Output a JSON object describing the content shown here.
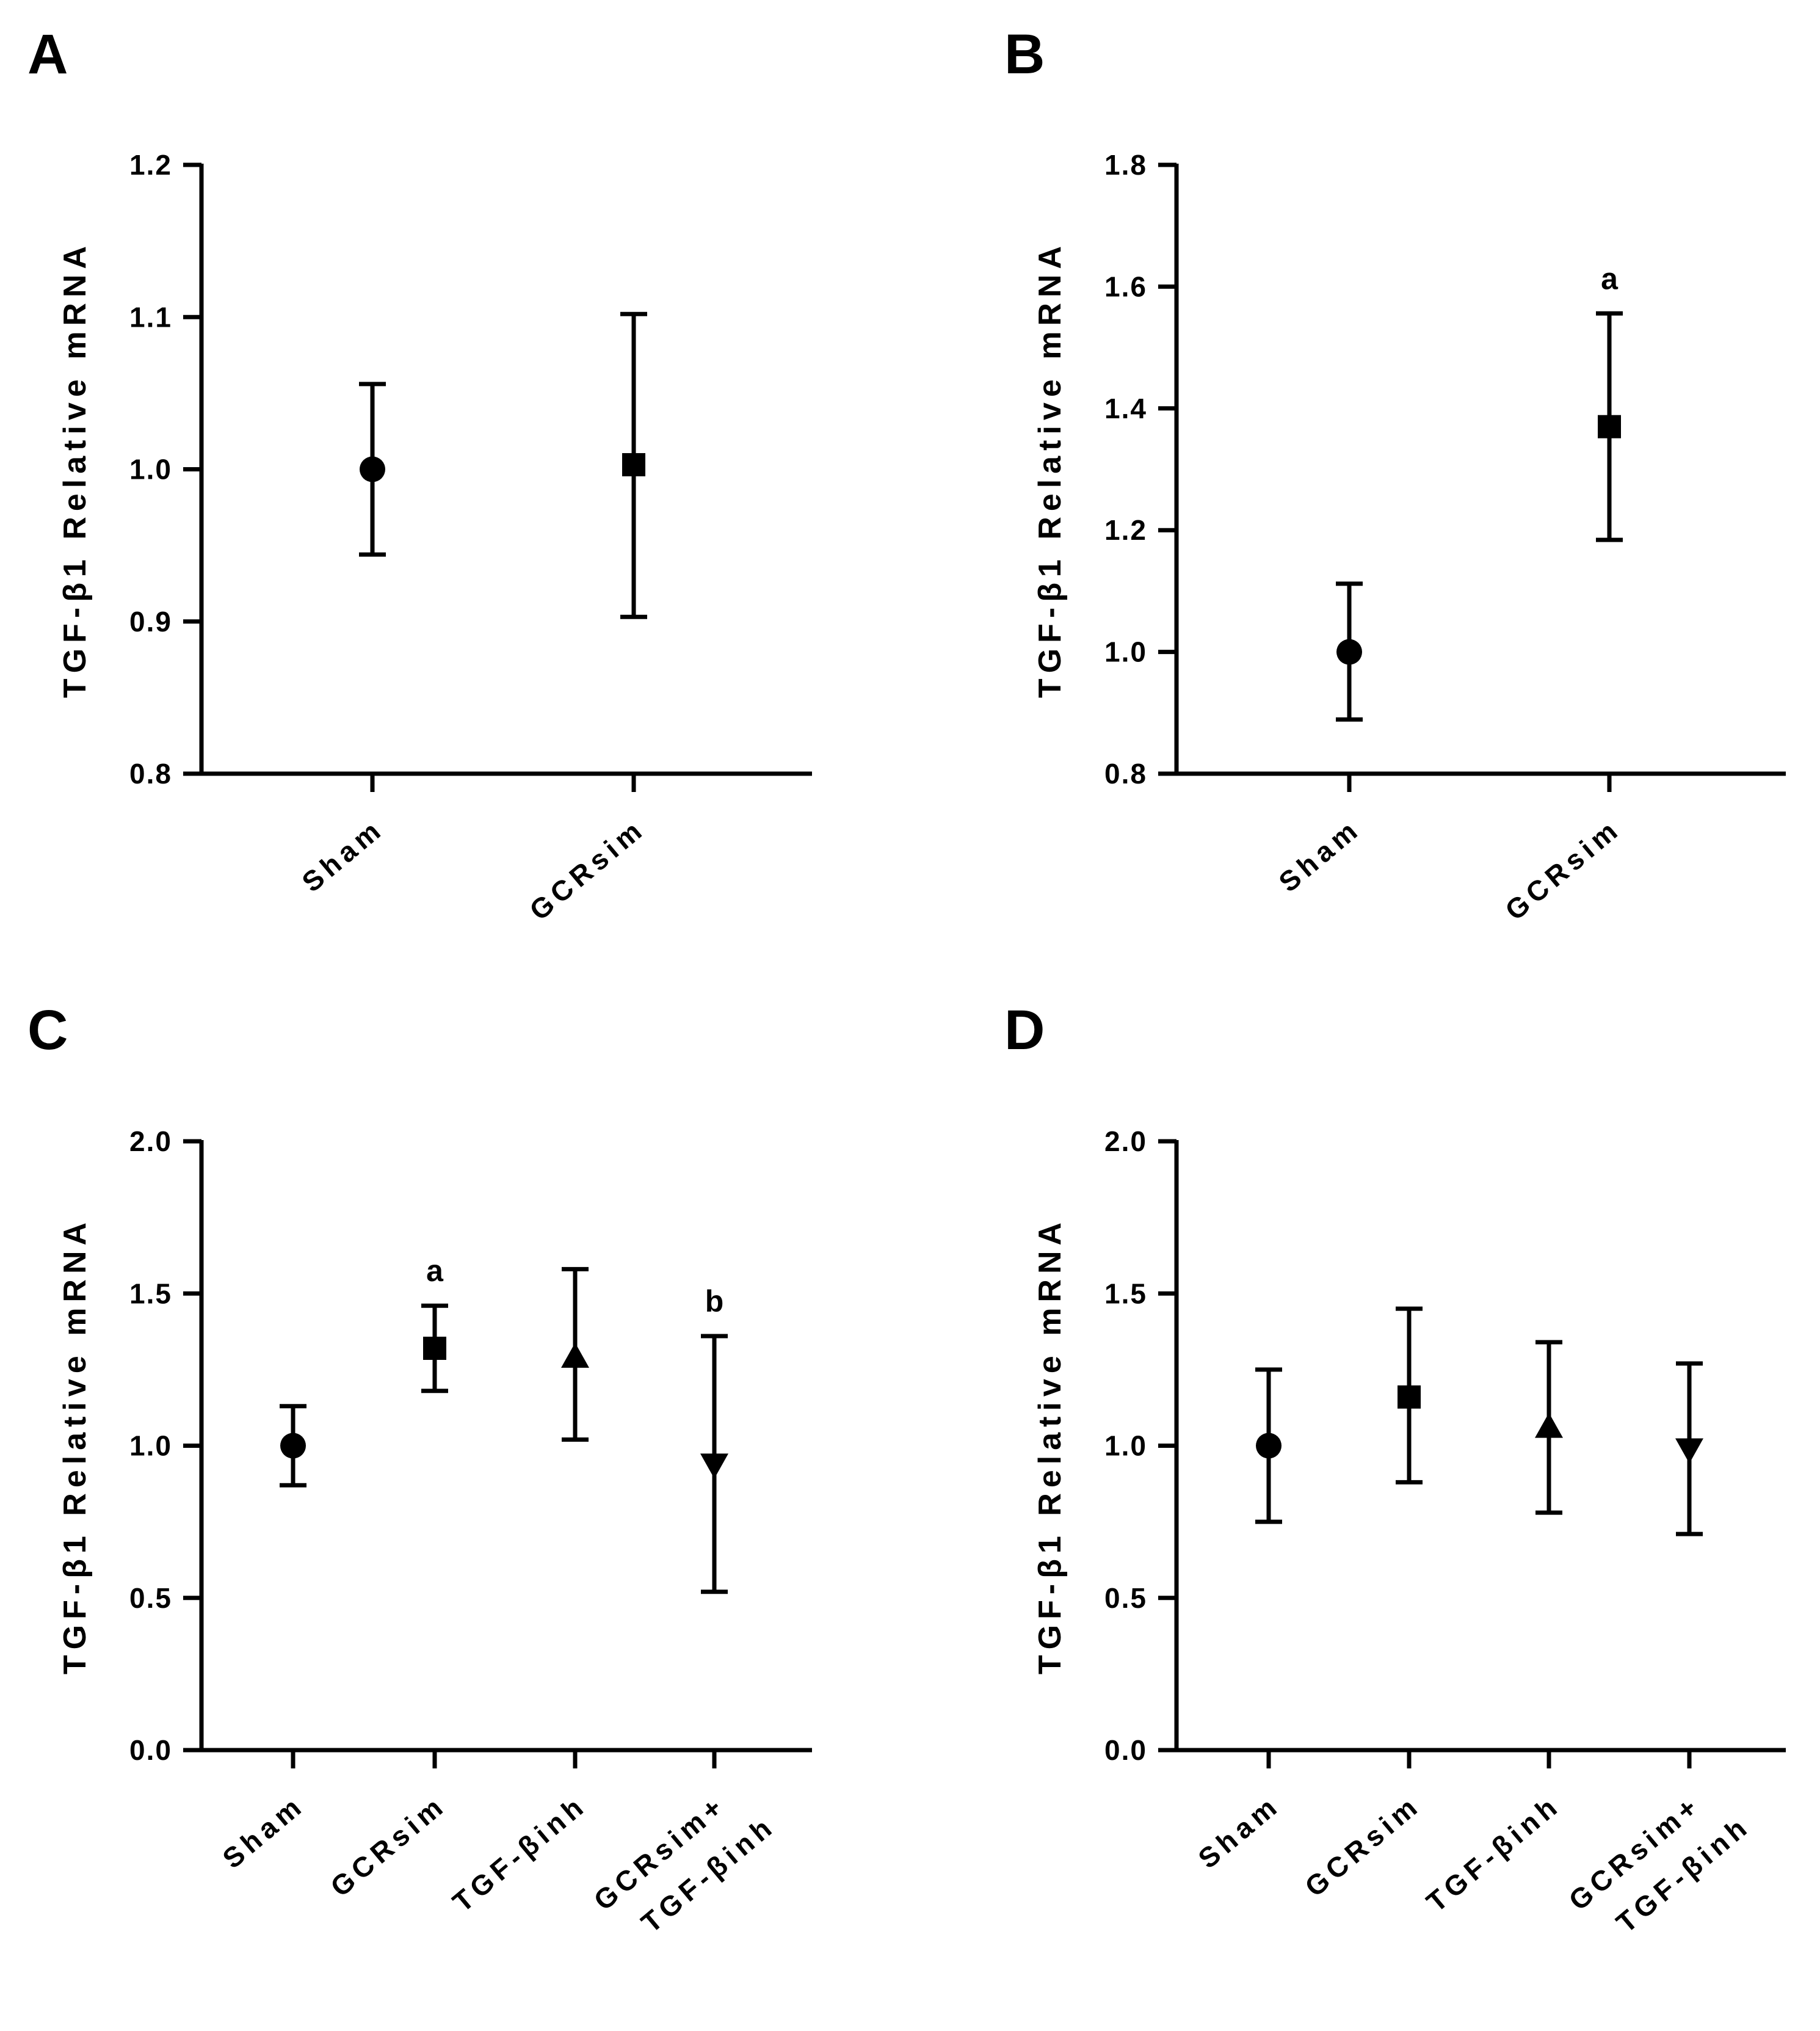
{
  "chart_data": [
    {
      "panel": "A",
      "type": "scatter",
      "ylabel": "TGF-β1 Relative mRNA",
      "ylim": [
        0.8,
        1.2
      ],
      "ytick_labels": [
        "0.8",
        "0.9",
        "1.0",
        "1.1",
        "1.2"
      ],
      "categories": [
        "Sham",
        "GCRsim"
      ],
      "markers": [
        "circle",
        "square"
      ],
      "values": [
        1.0,
        1.003
      ],
      "error_low": [
        0.944,
        0.903
      ],
      "error_high": [
        1.056,
        1.102
      ],
      "annotations": [
        "",
        ""
      ]
    },
    {
      "panel": "B",
      "type": "scatter",
      "ylabel": "TGF-β1 Relative mRNA",
      "ylim": [
        0.8,
        1.8
      ],
      "ytick_labels": [
        "0.8",
        "1.0",
        "1.2",
        "1.4",
        "1.6",
        "1.8"
      ],
      "categories": [
        "Sham",
        "GCRsim"
      ],
      "markers": [
        "circle",
        "square"
      ],
      "values": [
        1.0,
        1.37
      ],
      "error_low": [
        0.889,
        1.184
      ],
      "error_high": [
        1.112,
        1.556
      ],
      "annotations": [
        "",
        "a"
      ]
    },
    {
      "panel": "C",
      "type": "scatter",
      "ylabel": "TGF-β1 Relative mRNA",
      "ylim": [
        0.0,
        2.0
      ],
      "ytick_labels": [
        "0.0",
        "0.5",
        "1.0",
        "1.5",
        "2.0"
      ],
      "categories": [
        "Sham",
        "GCRsim",
        "TGF-βinh",
        "GCRsim+\nTGF-βinh"
      ],
      "markers": [
        "circle",
        "square",
        "triangle-up",
        "triangle-down"
      ],
      "values": [
        1.0,
        1.32,
        1.29,
        0.94
      ],
      "error_low": [
        0.87,
        1.18,
        1.02,
        0.52
      ],
      "error_high": [
        1.13,
        1.46,
        1.58,
        1.36
      ],
      "annotations": [
        "",
        "a",
        "",
        "b"
      ]
    },
    {
      "panel": "D",
      "type": "scatter",
      "ylabel": "TGF-β1 Relative mRNA",
      "ylim": [
        0.0,
        2.0
      ],
      "ytick_labels": [
        "0.0",
        "0.5",
        "1.0",
        "1.5",
        "2.0"
      ],
      "categories": [
        "Sham",
        "GCRsim",
        "TGF-βinh",
        "GCRsim+\nTGF-βinh"
      ],
      "markers": [
        "circle",
        "square",
        "triangle-up",
        "triangle-down"
      ],
      "values": [
        1.0,
        1.16,
        1.06,
        0.99
      ],
      "error_low": [
        0.75,
        0.88,
        0.78,
        0.71
      ],
      "error_high": [
        1.25,
        1.45,
        1.34,
        1.27
      ],
      "annotations": [
        "",
        "",
        "",
        ""
      ]
    }
  ]
}
